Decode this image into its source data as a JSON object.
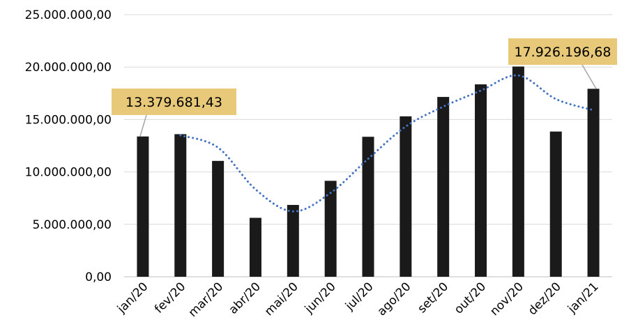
{
  "chart_data": {
    "type": "bar",
    "title": "",
    "xlabel": "",
    "ylabel": "",
    "categories": [
      "jan/20",
      "fev/20",
      "mar/20",
      "abr/20",
      "mai/20",
      "jun/20",
      "jul/20",
      "ago/20",
      "set/20",
      "out/20",
      "nov/20",
      "dez/20",
      "jan/21"
    ],
    "series": [
      {
        "values": [
          13379681.43,
          13600000,
          11050000,
          5620000,
          6850000,
          9150000,
          13350000,
          15300000,
          17150000,
          18350000,
          20050000,
          13850000,
          17926196.68
        ],
        "color": "#1a1a1a"
      }
    ],
    "trendline": {
      "type": "moving-average",
      "period": 2,
      "style": "dotted",
      "color": "#4472c4"
    },
    "ylim": [
      0,
      25000000
    ],
    "yticks": [
      0,
      5000000,
      10000000,
      15000000,
      20000000,
      25000000
    ],
    "ytick_labels": [
      "0,00",
      "5.000.000,00",
      "10.000.000,00",
      "15.000.000,00",
      "20.000.000,00",
      "25.000.000,00"
    ],
    "grid": true,
    "legend": "none",
    "annotations": [
      {
        "category_index": 0,
        "text": "13.379.681,43",
        "background": "#e8c97a"
      },
      {
        "category_index": 12,
        "text": "17.926.196,68",
        "background": "#e8c97a"
      }
    ]
  }
}
